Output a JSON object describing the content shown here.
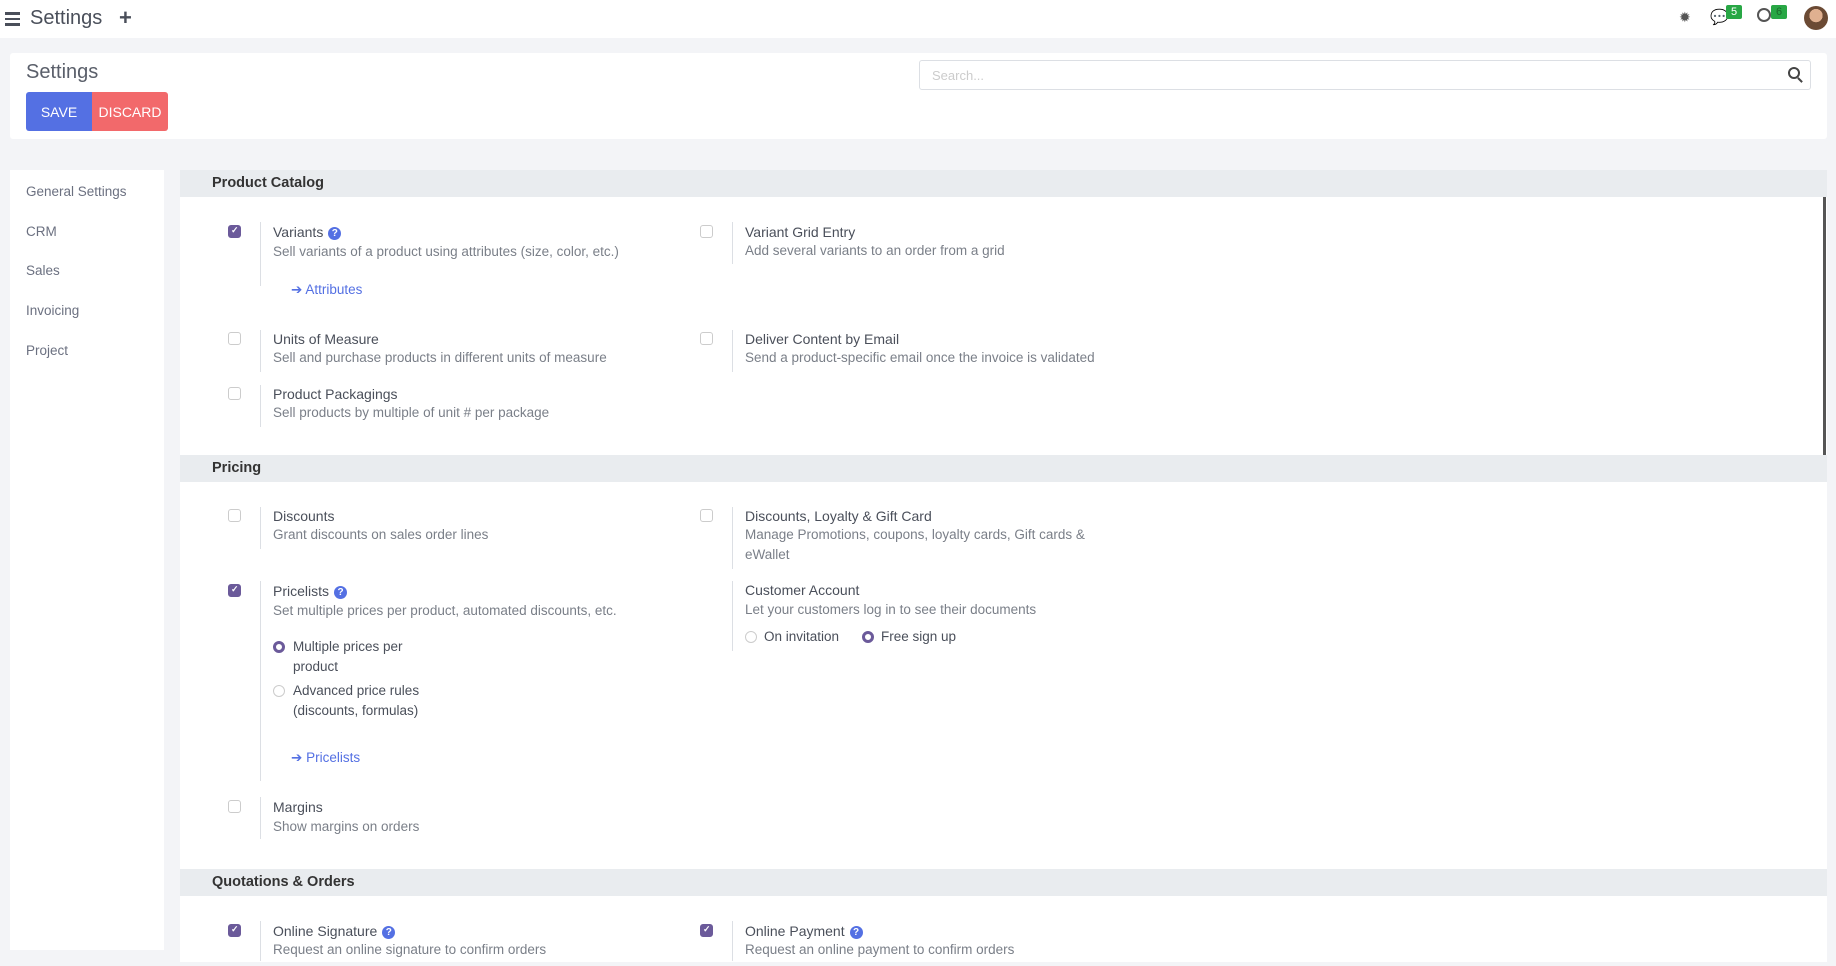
{
  "topbar": {
    "title": "Settings",
    "messages_count": "5",
    "activities_count": "6",
    "icons": [
      "menu-icon",
      "plus-icon",
      "bug-icon",
      "chat-icon",
      "clock-icon",
      "avatar"
    ]
  },
  "control_panel": {
    "title": "Settings",
    "save_label": "SAVE",
    "discard_label": "DISCARD",
    "search_placeholder": "Search..."
  },
  "sidebar": {
    "items": [
      {
        "label": "General Settings"
      },
      {
        "label": "CRM"
      },
      {
        "label": "Sales"
      },
      {
        "label": "Invoicing"
      },
      {
        "label": "Project"
      }
    ]
  },
  "sections": {
    "catalog": {
      "title": "Product Catalog",
      "variants": {
        "title": "Variants",
        "desc": "Sell variants of a product using attributes (size, color, etc.)",
        "link": "Attributes",
        "checked": true
      },
      "grid": {
        "title": "Variant Grid Entry",
        "desc": "Add several variants to an order from a grid",
        "checked": false
      },
      "uom": {
        "title": "Units of Measure",
        "desc": "Sell and purchase products in different units of measure",
        "checked": false
      },
      "email": {
        "title": "Deliver Content by Email",
        "desc": "Send a product-specific email once the invoice is validated",
        "checked": false
      },
      "pack": {
        "title": "Product Packagings",
        "desc": "Sell products by multiple of unit # per package",
        "checked": false
      }
    },
    "pricing": {
      "title": "Pricing",
      "discounts": {
        "title": "Discounts",
        "desc": "Grant discounts on sales order lines",
        "checked": false
      },
      "loyalty": {
        "title": "Discounts, Loyalty & Gift Card",
        "desc1": "Manage Promotions, coupons, loyalty cards, Gift cards &",
        "desc2": "eWallet",
        "checked": false
      },
      "pricelists": {
        "title": "Pricelists",
        "desc": "Set multiple prices per product, automated discounts, etc.",
        "checked": true,
        "opt1a": "Multiple prices per",
        "opt1b": "product",
        "opt2a": "Advanced price rules",
        "opt2b": "(discounts, formulas)",
        "selected": "Multiple prices per product",
        "link": "Pricelists"
      },
      "account": {
        "title": "Customer Account",
        "desc": "Let your customers log in to see their documents",
        "opt1": "On invitation",
        "opt2": "Free sign up",
        "selected": "Free sign up"
      },
      "margins": {
        "title": "Margins",
        "desc": "Show margins on orders",
        "checked": false
      }
    },
    "quotes": {
      "title": "Quotations & Orders",
      "signature": {
        "title": "Online Signature",
        "desc": "Request an online signature to confirm orders",
        "checked": true
      },
      "payment": {
        "title": "Online Payment",
        "desc": "Request an online payment to confirm orders",
        "checked": true
      }
    }
  }
}
